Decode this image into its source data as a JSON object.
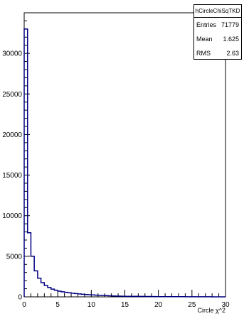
{
  "chart_data": {
    "type": "histogram",
    "title": "",
    "xlabel": "Circle χ^2",
    "ylabel": "",
    "xlim": [
      0,
      30
    ],
    "ylim": [
      0,
      35000
    ],
    "line_color": "#000080",
    "x_ticks": [
      0,
      5,
      10,
      15,
      20,
      25,
      30
    ],
    "y_ticks": [
      0,
      5000,
      10000,
      15000,
      20000,
      25000,
      30000
    ],
    "bin_width": 0.5,
    "bin_edges": [
      0,
      0.5,
      1,
      1.5,
      2,
      2.5,
      3,
      3.5,
      4,
      4.5,
      5,
      5.5,
      6,
      6.5,
      7,
      7.5,
      8,
      8.5,
      9,
      9.5,
      10,
      10.5,
      11,
      11.5,
      12,
      12.5,
      13,
      13.5,
      14,
      14.5,
      15,
      16,
      17,
      18,
      19,
      20,
      22,
      24,
      26,
      28,
      30
    ],
    "values": [
      33000,
      7900,
      5000,
      3200,
      2300,
      1750,
      1400,
      1150,
      950,
      820,
      700,
      620,
      560,
      500,
      450,
      400,
      360,
      320,
      290,
      260,
      240,
      210,
      190,
      170,
      150,
      130,
      115,
      100,
      90,
      80,
      70,
      60,
      50,
      40,
      30,
      25,
      20,
      15,
      10,
      5
    ]
  },
  "stats": {
    "name": "hCircleChiSqTKD",
    "entries_label": "Entries",
    "entries": "71779",
    "mean_label": "Mean",
    "mean": "1.625",
    "rms_label": "RMS",
    "rms": "2.63"
  }
}
